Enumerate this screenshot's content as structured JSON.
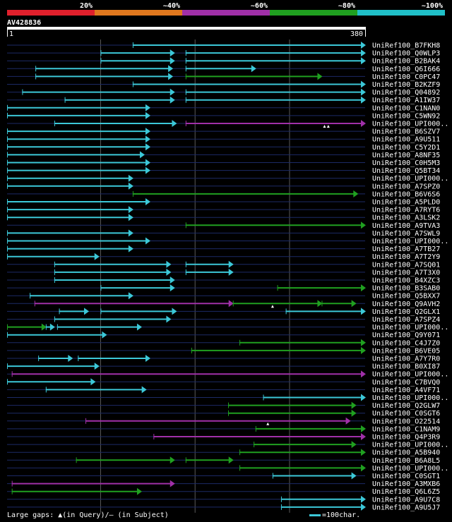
{
  "legend": {
    "items": [
      {
        "label": "20%",
        "color": "#e0202c"
      },
      {
        "label": "~40%",
        "color": "#e0781e"
      },
      {
        "label": "~60%",
        "color": "#a030a8"
      },
      {
        "label": "~80%",
        "color": "#20a020"
      },
      {
        "label": "~100%",
        "color": "#20c0c8"
      }
    ]
  },
  "query": {
    "id": "AV428836",
    "start": "1",
    "end": "380"
  },
  "footer": {
    "large_gaps": "Large gaps: ▲(in Query)/– (in Subject)",
    "scale": "=100char."
  },
  "chart_data": {
    "type": "alignment",
    "title": "AV428836",
    "query_length": 380,
    "rows": [
      {
        "label": "UniRef100_B7FKH8",
        "segs": [
          {
            "s": 134,
            "e": 380,
            "c": "#3cc8d8"
          }
        ]
      },
      {
        "label": "UniRef100_Q0WLP3",
        "segs": [
          {
            "s": 100,
            "e": 178,
            "c": "#3cc8d8"
          },
          {
            "s": 190,
            "e": 380,
            "c": "#3cc8d8"
          }
        ]
      },
      {
        "label": "UniRef100_B2BAK4",
        "segs": [
          {
            "s": 100,
            "e": 178,
            "c": "#3cc8d8"
          },
          {
            "s": 190,
            "e": 380,
            "c": "#3cc8d8"
          }
        ]
      },
      {
        "label": "UniRef100_Q6I666",
        "segs": [
          {
            "s": 31,
            "e": 176,
            "c": "#3cc8d8"
          },
          {
            "s": 190,
            "e": 264,
            "c": "#3cc8d8"
          }
        ]
      },
      {
        "label": "UniRef100_C0PC47",
        "segs": [
          {
            "s": 31,
            "e": 176,
            "c": "#3cc8d8"
          },
          {
            "s": 190,
            "e": 334,
            "c": "#20a020"
          }
        ]
      },
      {
        "label": "UniRef100_B2KZF9",
        "segs": [
          {
            "s": 134,
            "e": 380,
            "c": "#3cc8d8"
          }
        ]
      },
      {
        "label": "UniRef100_Q04892",
        "segs": [
          {
            "s": 17,
            "e": 178,
            "c": "#3cc8d8"
          },
          {
            "s": 190,
            "e": 380,
            "c": "#3cc8d8"
          }
        ]
      },
      {
        "label": "UniRef100_A1IW37",
        "segs": [
          {
            "s": 62,
            "e": 178,
            "c": "#3cc8d8"
          },
          {
            "s": 190,
            "e": 380,
            "c": "#3cc8d8"
          }
        ]
      },
      {
        "label": "UniRef100_C1NAN0",
        "segs": [
          {
            "s": 1,
            "e": 152,
            "c": "#3cc8d8"
          }
        ]
      },
      {
        "label": "UniRef100_C5WN92",
        "segs": [
          {
            "s": 1,
            "e": 152,
            "c": "#3cc8d8"
          }
        ]
      },
      {
        "label": "UniRef100_UPI000..",
        "segs": [
          {
            "s": 51,
            "e": 180,
            "c": "#3cc8d8"
          },
          {
            "s": 190,
            "e": 380,
            "c": "#a030a8"
          }
        ],
        "marks": [
          337,
          341
        ]
      },
      {
        "label": "UniRef100_B6SZV7",
        "segs": [
          {
            "s": 1,
            "e": 152,
            "c": "#3cc8d8"
          }
        ]
      },
      {
        "label": "UniRef100_A9U511",
        "segs": [
          {
            "s": 1,
            "e": 152,
            "c": "#3cc8d8"
          }
        ]
      },
      {
        "label": "UniRef100_C5Y2D1",
        "segs": [
          {
            "s": 1,
            "e": 152,
            "c": "#3cc8d8"
          }
        ]
      },
      {
        "label": "UniRef100_A8NF35",
        "segs": [
          {
            "s": 1,
            "e": 146,
            "c": "#3cc8d8"
          }
        ]
      },
      {
        "label": "UniRef100_C0H5M3",
        "segs": [
          {
            "s": 1,
            "e": 152,
            "c": "#3cc8d8"
          }
        ]
      },
      {
        "label": "UniRef100_Q5BT34",
        "segs": [
          {
            "s": 1,
            "e": 152,
            "c": "#3cc8d8"
          }
        ]
      },
      {
        "label": "UniRef100_UPI000..",
        "segs": [
          {
            "s": 1,
            "e": 134,
            "c": "#3cc8d8"
          }
        ]
      },
      {
        "label": "UniRef100_A7SPZ0",
        "segs": [
          {
            "s": 1,
            "e": 134,
            "c": "#3cc8d8"
          }
        ]
      },
      {
        "label": "UniRef100_B6V6S6",
        "segs": [
          {
            "s": 134,
            "e": 372,
            "c": "#20a020"
          }
        ]
      },
      {
        "label": "UniRef100_A5PLD0",
        "segs": [
          {
            "s": 1,
            "e": 152,
            "c": "#3cc8d8"
          }
        ]
      },
      {
        "label": "UniRef100_A7RYT6",
        "segs": [
          {
            "s": 1,
            "e": 134,
            "c": "#3cc8d8"
          }
        ]
      },
      {
        "label": "UniRef100_A3LSK2",
        "segs": [
          {
            "s": 1,
            "e": 134,
            "c": "#3cc8d8"
          }
        ]
      },
      {
        "label": "UniRef100_A9TVA3",
        "segs": [
          {
            "s": 190,
            "e": 380,
            "c": "#20a020"
          }
        ]
      },
      {
        "label": "UniRef100_A7SWL9",
        "segs": [
          {
            "s": 1,
            "e": 134,
            "c": "#3cc8d8"
          }
        ]
      },
      {
        "label": "UniRef100_UPI000..",
        "segs": [
          {
            "s": 1,
            "e": 152,
            "c": "#3cc8d8"
          }
        ]
      },
      {
        "label": "UniRef100_A7TB27",
        "segs": [
          {
            "s": 1,
            "e": 134,
            "c": "#3cc8d8"
          }
        ]
      },
      {
        "label": "UniRef100_A7T2Y9",
        "segs": [
          {
            "s": 1,
            "e": 98,
            "c": "#3cc8d8"
          }
        ]
      },
      {
        "label": "UniRef100_A7SQ01",
        "segs": [
          {
            "s": 51,
            "e": 174,
            "c": "#3cc8d8"
          },
          {
            "s": 190,
            "e": 240,
            "c": "#3cc8d8"
          }
        ]
      },
      {
        "label": "UniRef100_A7T3X0",
        "segs": [
          {
            "s": 51,
            "e": 174,
            "c": "#3cc8d8"
          },
          {
            "s": 190,
            "e": 240,
            "c": "#3cc8d8"
          }
        ]
      },
      {
        "label": "UniRef100_B4XZC3",
        "segs": [
          {
            "s": 51,
            "e": 178,
            "c": "#3cc8d8"
          }
        ]
      },
      {
        "label": "UniRef100_B3SAB0",
        "segs": [
          {
            "s": 100,
            "e": 178,
            "c": "#3cc8d8"
          },
          {
            "s": 287,
            "e": 380,
            "c": "#20a020"
          }
        ]
      },
      {
        "label": "UniRef100_Q5BXX7",
        "segs": [
          {
            "s": 25,
            "e": 134,
            "c": "#3cc8d8"
          }
        ]
      },
      {
        "label": "UniRef100_Q9AVH2",
        "segs": [
          {
            "s": 30,
            "e": 240,
            "c": "#a030a8"
          },
          {
            "s": 240,
            "e": 334,
            "c": "#20a020"
          },
          {
            "s": 334,
            "e": 370,
            "c": "#20a020"
          }
        ],
        "marks": [
          282
        ]
      },
      {
        "label": "UniRef100_Q2GLX1",
        "segs": [
          {
            "s": 56,
            "e": 87,
            "c": "#3cc8d8"
          },
          {
            "s": 100,
            "e": 180,
            "c": "#3cc8d8"
          },
          {
            "s": 296,
            "e": 380,
            "c": "#3cc8d8"
          }
        ]
      },
      {
        "label": "UniRef100_A7SPZ4",
        "segs": [
          {
            "s": 51,
            "e": 174,
            "c": "#3cc8d8"
          }
        ]
      },
      {
        "label": "UniRef100_UPI000..",
        "segs": [
          {
            "s": 1,
            "e": 42,
            "c": "#20a020"
          },
          {
            "s": 42,
            "e": 51,
            "c": "#3cc8d8"
          },
          {
            "s": 54,
            "e": 143,
            "c": "#3cc8d8"
          }
        ]
      },
      {
        "label": "UniRef100_Q9Y071",
        "segs": [
          {
            "s": 1,
            "e": 106,
            "c": "#3cc8d8"
          }
        ]
      },
      {
        "label": "UniRef100_C4J7Z0",
        "segs": [
          {
            "s": 247,
            "e": 380,
            "c": "#20a020"
          }
        ]
      },
      {
        "label": "UniRef100_B6VE05",
        "segs": [
          {
            "s": 196,
            "e": 380,
            "c": "#20a020"
          }
        ]
      },
      {
        "label": "UniRef100_A7Y7R0",
        "segs": [
          {
            "s": 34,
            "e": 70,
            "c": "#3cc8d8"
          },
          {
            "s": 76,
            "e": 152,
            "c": "#3cc8d8"
          }
        ]
      },
      {
        "label": "UniRef100_B0XI87",
        "segs": [
          {
            "s": 1,
            "e": 98,
            "c": "#3cc8d8"
          }
        ]
      },
      {
        "label": "UniRef100_UPI000..",
        "segs": [
          {
            "s": 6,
            "e": 380,
            "c": "#a030a8"
          }
        ]
      },
      {
        "label": "UniRef100_C7BVQ0",
        "segs": [
          {
            "s": 1,
            "e": 94,
            "c": "#3cc8d8"
          }
        ]
      },
      {
        "label": "UniRef100_A4VF71",
        "segs": [
          {
            "s": 42,
            "e": 148,
            "c": "#3cc8d8"
          }
        ]
      },
      {
        "label": "UniRef100_UPI000..",
        "segs": [
          {
            "s": 272,
            "e": 380,
            "c": "#3cc8d8"
          }
        ]
      },
      {
        "label": "UniRef100_Q2GLW7",
        "segs": [
          {
            "s": 235,
            "e": 370,
            "c": "#20a020"
          }
        ]
      },
      {
        "label": "UniRef100_C0SGT6",
        "segs": [
          {
            "s": 235,
            "e": 370,
            "c": "#20a020"
          }
        ]
      },
      {
        "label": "UniRef100_O22514",
        "segs": [
          {
            "s": 84,
            "e": 364,
            "c": "#a030a8"
          }
        ],
        "marks": [
          277
        ]
      },
      {
        "label": "UniRef100_C1NAM9",
        "segs": [
          {
            "s": 264,
            "e": 380,
            "c": "#20a020"
          }
        ]
      },
      {
        "label": "UniRef100_Q4P3R9",
        "segs": [
          {
            "s": 156,
            "e": 380,
            "c": "#a030a8"
          }
        ]
      },
      {
        "label": "UniRef100_UPI000..",
        "segs": [
          {
            "s": 262,
            "e": 370,
            "c": "#20a020"
          }
        ]
      },
      {
        "label": "UniRef100_A5B940",
        "segs": [
          {
            "s": 247,
            "e": 380,
            "c": "#20a020"
          }
        ]
      },
      {
        "label": "UniRef100_B6A8L5",
        "segs": [
          {
            "s": 74,
            "e": 178,
            "c": "#20a020"
          },
          {
            "s": 190,
            "e": 240,
            "c": "#20a020"
          }
        ]
      },
      {
        "label": "UniRef100_UPI000..",
        "segs": [
          {
            "s": 247,
            "e": 380,
            "c": "#20a020"
          }
        ]
      },
      {
        "label": "UniRef100_C0SGT1",
        "segs": [
          {
            "s": 282,
            "e": 370,
            "c": "#3cc8d8"
          }
        ]
      },
      {
        "label": "UniRef100_A3MXB6",
        "segs": [
          {
            "s": 6,
            "e": 178,
            "c": "#a030a8"
          }
        ]
      },
      {
        "label": "UniRef100_Q6L6Z5",
        "segs": [
          {
            "s": 6,
            "e": 143,
            "c": "#20a020"
          }
        ]
      },
      {
        "label": "UniRef100_A9U7C8",
        "segs": [
          {
            "s": 291,
            "e": 380,
            "c": "#3cc8d8"
          }
        ]
      },
      {
        "label": "UniRef100_A9U5J7",
        "segs": [
          {
            "s": 291,
            "e": 380,
            "c": "#3cc8d8"
          }
        ]
      }
    ]
  }
}
